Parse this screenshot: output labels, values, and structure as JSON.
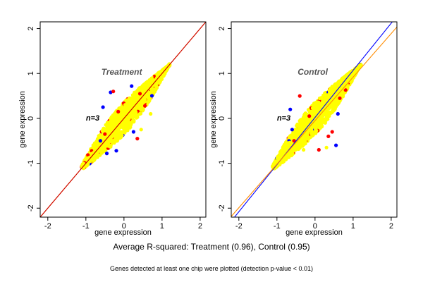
{
  "figure": {
    "caption": "Average R-squared: Treatment (0.96), Control (0.95)",
    "note": "Genes detected at least one chip were plotted (detection p-value < 0.01)"
  },
  "colors": {
    "point_primary": "#ffff00",
    "point_secondary": "#ff0000",
    "point_tertiary": "#0000ff",
    "fit_line_orange": "#ff8c00",
    "fit_line_red": "#cc0000",
    "fit_line_blue": "#0000ff",
    "title_gray": "#555555"
  },
  "chart_data": [
    {
      "type": "scatter",
      "title": "Treatment",
      "annotation": "n=3",
      "xlabel": "gene expression",
      "ylabel": "gene expression",
      "xlim": [
        -2.2,
        2.15
      ],
      "ylim": [
        -2.2,
        2.15
      ],
      "xticks": [
        -2,
        -1,
        0,
        1,
        2
      ],
      "yticks": [
        -2,
        -1,
        0,
        1,
        2
      ],
      "grid": false,
      "point_cloud": {
        "x_range": [
          -1.1,
          1.2
        ],
        "y_range": [
          -1.15,
          1.2
        ],
        "density": "dense"
      },
      "series": [
        {
          "color": "#ffff00",
          "values": "dense cloud along y = x"
        },
        {
          "color": "#ff0000",
          "values": "scattered points near cloud edge"
        },
        {
          "color": "#0000ff",
          "values": "sparse outliers"
        }
      ],
      "lines": [
        {
          "color": "#ff8c00",
          "slope": 1.0,
          "intercept": 0.0
        },
        {
          "color": "#cc0000",
          "slope": 1.0,
          "intercept": 0.0
        }
      ],
      "outliers": [
        {
          "x": -0.35,
          "y": 0.58,
          "c": "#0000ff"
        },
        {
          "x": -0.28,
          "y": 0.6,
          "c": "#ff0000"
        },
        {
          "x": 0.2,
          "y": 0.72,
          "c": "#0000ff"
        },
        {
          "x": 0.42,
          "y": 0.55,
          "c": "#ff0000"
        },
        {
          "x": -0.2,
          "y": -0.72,
          "c": "#0000ff"
        },
        {
          "x": -0.45,
          "y": -0.78,
          "c": "#0000ff"
        },
        {
          "x": 0.25,
          "y": -0.3,
          "c": "#0000ff"
        },
        {
          "x": 0.45,
          "y": -0.25,
          "c": "#ffff00"
        },
        {
          "x": -0.55,
          "y": 0.25,
          "c": "#0000ff"
        },
        {
          "x": 0.55,
          "y": 0.28,
          "c": "#ff0000"
        },
        {
          "x": -0.5,
          "y": -0.35,
          "c": "#ff0000"
        },
        {
          "x": 0.35,
          "y": -0.45,
          "c": "#ff0000"
        },
        {
          "x": -0.15,
          "y": 0.15,
          "c": "#ff0000"
        },
        {
          "x": -0.62,
          "y": -0.5,
          "c": "#0000ff"
        },
        {
          "x": 0.7,
          "y": 0.1,
          "c": "#ffff00"
        }
      ]
    },
    {
      "type": "scatter",
      "title": "Control",
      "annotation": "n=3",
      "xlabel": "gene expression",
      "ylabel": "gene expression",
      "xlim": [
        -2.2,
        2.15
      ],
      "ylim": [
        -2.2,
        2.15
      ],
      "xticks": [
        -2,
        -1,
        0,
        1,
        2
      ],
      "yticks": [
        -2,
        -1,
        0,
        1,
        2
      ],
      "grid": false,
      "point_cloud": {
        "x_range": [
          -1.1,
          1.2
        ],
        "y_range": [
          -1.15,
          1.2
        ],
        "density": "dense"
      },
      "series": [
        {
          "color": "#ffff00",
          "values": "dense cloud along y = x"
        },
        {
          "color": "#ff0000",
          "values": "scattered points near cloud edge"
        },
        {
          "color": "#0000ff",
          "values": "sparse outliers"
        }
      ],
      "lines": [
        {
          "color": "#0000ff",
          "slope": 1.05,
          "intercept": 0.02
        },
        {
          "color": "#ff8c00",
          "slope": 0.97,
          "intercept": -0.05
        }
      ],
      "outliers": [
        {
          "x": -0.6,
          "y": -0.25,
          "c": "#0000ff"
        },
        {
          "x": -0.65,
          "y": 0.2,
          "c": "#0000ff"
        },
        {
          "x": 0.55,
          "y": -0.6,
          "c": "#0000ff"
        },
        {
          "x": 0.6,
          "y": 0.1,
          "c": "#0000ff"
        },
        {
          "x": 0.45,
          "y": -0.3,
          "c": "#ff0000"
        },
        {
          "x": -0.4,
          "y": 0.5,
          "c": "#ff0000"
        },
        {
          "x": 0.1,
          "y": -0.7,
          "c": "#ff0000"
        },
        {
          "x": 0.3,
          "y": -0.65,
          "c": "#ffff00"
        },
        {
          "x": -0.3,
          "y": -0.7,
          "c": "#ffff00"
        },
        {
          "x": -0.15,
          "y": 0.05,
          "c": "#ff0000"
        },
        {
          "x": 0.65,
          "y": 0.45,
          "c": "#ff0000"
        },
        {
          "x": -0.55,
          "y": -0.5,
          "c": "#ff0000"
        },
        {
          "x": 0.35,
          "y": -0.4,
          "c": "#ff0000"
        },
        {
          "x": -0.72,
          "y": -0.55,
          "c": "#ffff00"
        }
      ]
    }
  ]
}
